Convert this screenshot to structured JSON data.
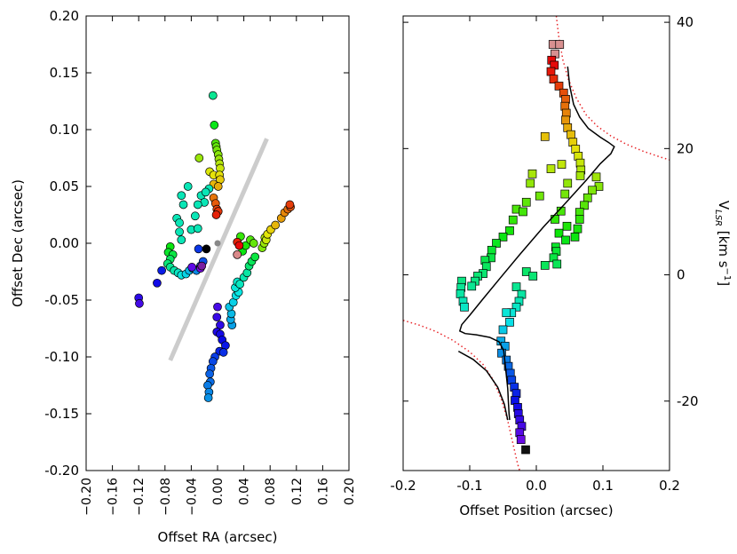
{
  "chart_data": [
    {
      "type": "scatter",
      "title": "",
      "xlabel": "Offset RA (arcsec)",
      "ylabel": "Offset Dec (arcsec)",
      "xlim": [
        -0.2,
        0.2
      ],
      "ylim": [
        -0.2,
        0.2
      ],
      "xticks": [
        "−0.20",
        "−0.16",
        "−0.12",
        "−0.08",
        "−0.04",
        "0.00",
        "0.04",
        "0.08",
        "0.12",
        "0.16",
        "0.20"
      ],
      "yticks": [
        "0.20",
        "0.15",
        "0.10",
        "0.05",
        "0.00",
        "-0.05",
        "-0.10",
        "-0.15",
        "-0.20"
      ],
      "grey_line": {
        "x1": -0.072,
        "y1": -0.103,
        "x2": 0.075,
        "y2": 0.092
      },
      "center_point": [
        0.0,
        0.0
      ],
      "series": [
        {
          "name": "arc_upper",
          "points": [
            [
              -0.007,
              0.13
            ],
            [
              -0.005,
              0.104
            ],
            [
              -0.003,
              0.088
            ],
            [
              -0.002,
              0.085
            ],
            [
              -0.001,
              0.082
            ],
            [
              0.001,
              0.078
            ],
            [
              0.002,
              0.074
            ],
            [
              0.003,
              0.07
            ],
            [
              -0.028,
              0.075
            ],
            [
              0.004,
              0.066
            ],
            [
              -0.012,
              0.063
            ],
            [
              -0.006,
              0.06
            ],
            [
              0.003,
              0.06
            ],
            [
              0.004,
              0.056
            ],
            [
              -0.045,
              0.05
            ],
            [
              -0.006,
              0.052
            ],
            [
              -0.013,
              0.048
            ],
            [
              0.001,
              0.05
            ],
            [
              -0.025,
              0.042
            ],
            [
              -0.018,
              0.045
            ],
            [
              -0.055,
              0.042
            ],
            [
              -0.052,
              0.034
            ],
            [
              -0.006,
              0.04
            ],
            [
              -0.02,
              0.036
            ],
            [
              -0.03,
              0.034
            ],
            [
              -0.003,
              0.035
            ],
            [
              -0.001,
              0.03
            ],
            [
              0.001,
              0.028
            ],
            [
              -0.002,
              0.025
            ],
            [
              -0.062,
              0.022
            ],
            [
              -0.058,
              0.018
            ],
            [
              -0.034,
              0.024
            ],
            [
              -0.04,
              0.012
            ],
            [
              -0.03,
              0.013
            ],
            [
              -0.058,
              0.01
            ],
            [
              -0.055,
              0.003
            ]
          ]
        },
        {
          "name": "arc_upper_left",
          "points": [
            [
              -0.072,
              -0.003
            ],
            [
              -0.075,
              -0.008
            ],
            [
              -0.068,
              -0.01
            ],
            [
              -0.072,
              -0.014
            ],
            [
              -0.076,
              -0.018
            ],
            [
              -0.072,
              -0.021
            ],
            [
              -0.066,
              -0.024
            ],
            [
              -0.06,
              -0.026
            ],
            [
              -0.055,
              -0.028
            ],
            [
              -0.048,
              -0.027
            ],
            [
              -0.043,
              -0.024
            ],
            [
              -0.038,
              -0.022
            ],
            [
              -0.032,
              -0.024
            ],
            [
              -0.026,
              -0.02
            ],
            [
              -0.022,
              -0.016
            ],
            [
              -0.029,
              -0.005
            ],
            [
              -0.085,
              -0.024
            ],
            [
              -0.092,
              -0.035
            ],
            [
              -0.12,
              -0.048
            ],
            [
              -0.119,
              -0.053
            ],
            [
              -0.039,
              -0.021
            ],
            [
              -0.026,
              -0.022
            ]
          ]
        },
        {
          "name": "arc_lower",
          "points": [
            [
              0.0,
              -0.056
            ],
            [
              -0.001,
              -0.065
            ],
            [
              0.004,
              -0.072
            ],
            [
              -0.001,
              -0.078
            ],
            [
              0.004,
              -0.08
            ],
            [
              0.007,
              -0.085
            ],
            [
              0.012,
              -0.09
            ],
            [
              0.003,
              -0.095
            ],
            [
              0.009,
              -0.096
            ],
            [
              -0.004,
              -0.1
            ],
            [
              -0.007,
              -0.104
            ],
            [
              -0.01,
              -0.11
            ],
            [
              -0.012,
              -0.115
            ],
            [
              -0.011,
              -0.122
            ],
            [
              -0.015,
              -0.125
            ],
            [
              -0.013,
              -0.131
            ],
            [
              -0.014,
              -0.136
            ],
            [
              0.022,
              -0.072
            ],
            [
              0.02,
              -0.067
            ],
            [
              0.021,
              -0.062
            ],
            [
              0.018,
              -0.056
            ],
            [
              0.024,
              -0.052
            ],
            [
              0.028,
              -0.046
            ],
            [
              0.032,
              -0.043
            ],
            [
              0.027,
              -0.039
            ],
            [
              0.03,
              -0.034
            ],
            [
              0.034,
              -0.036
            ],
            [
              0.04,
              -0.03
            ],
            [
              0.045,
              -0.026
            ]
          ]
        },
        {
          "name": "arc_lower_right",
          "points": [
            [
              0.048,
              -0.02
            ],
            [
              0.052,
              -0.016
            ],
            [
              0.057,
              -0.012
            ],
            [
              0.03,
              -0.01
            ],
            [
              0.038,
              -0.007
            ],
            [
              0.043,
              -0.002
            ],
            [
              0.035,
              0.006
            ],
            [
              0.05,
              0.003
            ],
            [
              0.055,
              0.0
            ],
            [
              0.068,
              -0.004
            ],
            [
              0.071,
              0.0
            ],
            [
              0.072,
              0.005
            ],
            [
              0.074,
              0.003
            ],
            [
              0.076,
              0.008
            ],
            [
              0.081,
              0.012
            ],
            [
              0.088,
              0.016
            ],
            [
              0.097,
              0.022
            ],
            [
              0.102,
              0.027
            ],
            [
              0.107,
              0.03
            ],
            [
              0.111,
              0.032
            ],
            [
              0.11,
              0.034
            ],
            [
              0.03,
              0.001
            ],
            [
              0.033,
              -0.002
            ]
          ]
        }
      ]
    },
    {
      "type": "scatter",
      "title": "",
      "xlabel": "Offset Position (arcsec)",
      "ylabel": "V_LSR [km s^-1]",
      "xlim": [
        -0.2,
        0.2
      ],
      "ylim": [
        -31,
        41
      ],
      "xticks": [
        "-0.2",
        "-0.1",
        "0.0",
        "0.1",
        "0.2"
      ],
      "yticks": [
        "40",
        "20",
        "0",
        "-20"
      ],
      "points": [
        [
          0.025,
          36.5
        ],
        [
          0.035,
          36.5
        ],
        [
          0.028,
          35.0
        ],
        [
          0.023,
          34.0
        ],
        [
          0.027,
          33.2
        ],
        [
          0.022,
          32.2
        ],
        [
          0.026,
          31.0
        ],
        [
          0.034,
          29.9
        ],
        [
          0.041,
          28.8
        ],
        [
          0.044,
          27.8
        ],
        [
          0.043,
          26.7
        ],
        [
          0.045,
          25.6
        ],
        [
          0.044,
          24.5
        ],
        [
          0.047,
          23.3
        ],
        [
          0.052,
          22.2
        ],
        [
          0.013,
          21.9
        ],
        [
          0.055,
          21.0
        ],
        [
          0.059,
          19.9
        ],
        [
          0.063,
          18.8
        ],
        [
          0.066,
          17.7
        ],
        [
          0.067,
          16.6
        ],
        [
          0.038,
          17.5
        ],
        [
          0.022,
          16.8
        ],
        [
          -0.006,
          16.0
        ],
        [
          0.066,
          15.7
        ],
        [
          0.09,
          15.5
        ],
        [
          0.094,
          14.0
        ],
        [
          0.047,
          14.5
        ],
        [
          0.084,
          13.4
        ],
        [
          -0.009,
          14.5
        ],
        [
          0.043,
          12.8
        ],
        [
          0.005,
          12.5
        ],
        [
          0.077,
          12.2
        ],
        [
          -0.015,
          11.5
        ],
        [
          0.072,
          11.0
        ],
        [
          0.065,
          9.9
        ],
        [
          -0.03,
          10.4
        ],
        [
          -0.02,
          10.0
        ],
        [
          0.037,
          10.1
        ],
        [
          0.065,
          8.8
        ],
        [
          -0.035,
          8.7
        ],
        [
          0.028,
          8.8
        ],
        [
          0.046,
          7.7
        ],
        [
          0.062,
          7.3
        ],
        [
          -0.04,
          7.0
        ],
        [
          0.034,
          6.6
        ],
        [
          -0.05,
          6.0
        ],
        [
          0.058,
          6.0
        ],
        [
          0.044,
          5.5
        ],
        [
          -0.06,
          5.0
        ],
        [
          0.029,
          4.4
        ],
        [
          0.03,
          3.7
        ],
        [
          -0.067,
          3.9
        ],
        [
          -0.068,
          2.7
        ],
        [
          0.026,
          2.7
        ],
        [
          0.031,
          1.7
        ],
        [
          -0.077,
          2.3
        ],
        [
          -0.075,
          1.3
        ],
        [
          -0.08,
          0.2
        ],
        [
          0.013,
          1.5
        ],
        [
          -0.088,
          -0.2
        ],
        [
          -0.092,
          -1.0
        ],
        [
          -0.015,
          0.5
        ],
        [
          -0.005,
          -0.2
        ],
        [
          -0.097,
          -1.8
        ],
        [
          -0.112,
          -1.0
        ],
        [
          -0.113,
          -2.0
        ],
        [
          -0.03,
          -1.9
        ],
        [
          -0.114,
          -3.0
        ],
        [
          -0.11,
          -4.2
        ],
        [
          -0.108,
          -5.1
        ],
        [
          -0.022,
          -3.1
        ],
        [
          -0.026,
          -4.2
        ],
        [
          -0.03,
          -5.1
        ],
        [
          -0.037,
          -6.0
        ],
        [
          -0.045,
          -6.0
        ],
        [
          -0.04,
          -7.5
        ],
        [
          -0.05,
          -8.7
        ],
        [
          -0.053,
          -10.5
        ],
        [
          -0.047,
          -11.3
        ],
        [
          -0.052,
          -12.4
        ],
        [
          -0.045,
          -13.5
        ],
        [
          -0.042,
          -14.5
        ],
        [
          -0.039,
          -15.6
        ],
        [
          -0.037,
          -16.7
        ],
        [
          -0.033,
          -17.8
        ],
        [
          -0.03,
          -18.8
        ],
        [
          -0.032,
          -19.9
        ],
        [
          -0.028,
          -21.0
        ],
        [
          -0.027,
          -22.0
        ],
        [
          -0.025,
          -23.0
        ],
        [
          -0.022,
          -24.0
        ],
        [
          -0.025,
          -25.0
        ],
        [
          -0.023,
          -26.1
        ],
        [
          -0.016,
          -27.7
        ]
      ],
      "model_curve": [
        [
          0.047,
          33.0
        ],
        [
          0.05,
          30.0
        ],
        [
          0.056,
          27.0
        ],
        [
          0.065,
          25.0
        ],
        [
          0.078,
          23.2
        ],
        [
          0.096,
          21.8
        ],
        [
          0.108,
          21.0
        ],
        [
          0.117,
          20.3
        ],
        [
          0.112,
          19.2
        ],
        [
          0.096,
          17.6
        ],
        [
          0.075,
          15.0
        ],
        [
          0.045,
          11.5
        ],
        [
          0.01,
          7.5
        ],
        [
          -0.025,
          3.2
        ],
        [
          -0.055,
          -0.6
        ],
        [
          -0.08,
          -3.8
        ],
        [
          -0.1,
          -6.4
        ],
        [
          -0.112,
          -7.9
        ],
        [
          -0.115,
          -8.9
        ],
        [
          -0.107,
          -9.3
        ],
        [
          -0.09,
          -9.5
        ],
        [
          -0.07,
          -9.9
        ],
        [
          -0.056,
          -10.6
        ],
        [
          -0.049,
          -12.0
        ],
        [
          -0.047,
          -14.0
        ],
        [
          -0.045,
          -16.0
        ],
        [
          -0.043,
          -18.0
        ],
        [
          -0.042,
          -20.0
        ],
        [
          -0.041,
          -22.0
        ],
        [
          -0.04,
          -23.0
        ]
      ],
      "model_curve_branch": [
        [
          -0.117,
          -12.1
        ],
        [
          -0.095,
          -13.4
        ],
        [
          -0.075,
          -15.2
        ],
        [
          -0.058,
          -17.8
        ],
        [
          -0.048,
          -20.5
        ],
        [
          -0.043,
          -23.0
        ]
      ],
      "envelope_upper": [
        [
          0.03,
          41.0
        ],
        [
          0.034,
          37.5
        ],
        [
          0.04,
          34.0
        ],
        [
          0.048,
          31.0
        ],
        [
          0.06,
          28.0
        ],
        [
          0.075,
          25.3
        ],
        [
          0.092,
          23.5
        ],
        [
          0.112,
          22.0
        ],
        [
          0.135,
          20.7
        ],
        [
          0.16,
          19.6
        ],
        [
          0.185,
          18.7
        ],
        [
          0.2,
          18.2
        ]
      ],
      "envelope_lower": [
        [
          -0.2,
          -7.2
        ],
        [
          -0.175,
          -8.0
        ],
        [
          -0.15,
          -9.0
        ],
        [
          -0.125,
          -10.4
        ],
        [
          -0.1,
          -12.2
        ],
        [
          -0.08,
          -14.2
        ],
        [
          -0.065,
          -16.6
        ],
        [
          -0.053,
          -19.6
        ],
        [
          -0.043,
          -23.1
        ],
        [
          -0.035,
          -26.8
        ],
        [
          -0.028,
          -30.0
        ],
        [
          -0.025,
          -31.0
        ]
      ]
    }
  ]
}
